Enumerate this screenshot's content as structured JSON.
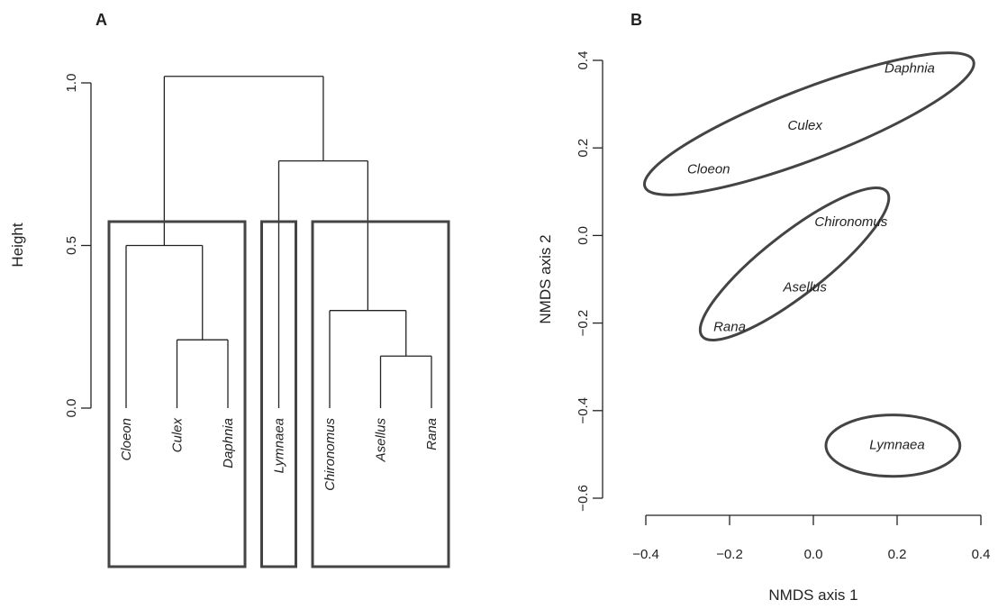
{
  "chart_data": [
    {
      "type": "dendrogram",
      "panel_label": "A",
      "ylabel": "Height",
      "ylim": [
        0,
        1
      ],
      "yticks": [
        0.0,
        0.5,
        1.0
      ],
      "ytick_labels": [
        "0.0",
        "0.5",
        "1.0"
      ],
      "leaves": [
        "Cloeon",
        "Culex",
        "Daphnia",
        "Lymnaea",
        "Chironomus",
        "Asellus",
        "Rana"
      ],
      "merges": [
        {
          "left": "Asellus",
          "right": "Rana",
          "height": 0.16
        },
        {
          "left": "Culex",
          "right": "Daphnia",
          "height": 0.21
        },
        {
          "left": "Chironomus",
          "right": "Asellus+Rana",
          "height": 0.3
        },
        {
          "left": "Cloeon",
          "right": "Culex+Daphnia",
          "height": 0.5
        },
        {
          "left": "Lymnaea",
          "right": "Chironomus+Asellus+Rana",
          "height": 0.76
        },
        {
          "left": "Cloeon+Culex+Daphnia",
          "right": "Lymnaea+Chironomus+Asellus+Rana",
          "height": 1.02
        }
      ],
      "groups": [
        [
          "Cloeon",
          "Culex",
          "Daphnia"
        ],
        [
          "Lymnaea"
        ],
        [
          "Chironomus",
          "Asellus",
          "Rana"
        ]
      ]
    },
    {
      "type": "scatter",
      "panel_label": "B",
      "xlabel": "NMDS axis 1",
      "ylabel": "NMDS axis 2",
      "xlim": [
        -0.4,
        0.4
      ],
      "ylim": [
        -0.6,
        0.4
      ],
      "xticks": [
        -0.4,
        -0.2,
        0.0,
        0.2,
        0.4
      ],
      "xtick_labels": [
        "−0.4",
        "−0.2",
        "0.0",
        "0.2",
        "0.4"
      ],
      "yticks": [
        -0.6,
        -0.4,
        -0.2,
        0.0,
        0.2,
        0.4
      ],
      "ytick_labels": [
        "−0.6",
        "−0.4",
        "−0.2",
        "0.0",
        "0.2",
        "0.4"
      ],
      "points": [
        {
          "label": "Daphnia",
          "x": 0.23,
          "y": 0.38
        },
        {
          "label": "Culex",
          "x": -0.02,
          "y": 0.25
        },
        {
          "label": "Cloeon",
          "x": -0.25,
          "y": 0.15
        },
        {
          "label": "Chironomus",
          "x": 0.09,
          "y": 0.03
        },
        {
          "label": "Asellus",
          "x": -0.02,
          "y": -0.12
        },
        {
          "label": "Rana",
          "x": -0.2,
          "y": -0.21
        },
        {
          "label": "Lymnaea",
          "x": 0.2,
          "y": -0.48
        }
      ],
      "ellipses": [
        {
          "members": [
            "Cloeon",
            "Culex",
            "Daphnia"
          ],
          "cx": -0.01,
          "cy": 0.255,
          "rx": 0.42,
          "ry": 0.08,
          "angle_deg": -21
        },
        {
          "members": [
            "Chironomus",
            "Asellus",
            "Rana"
          ],
          "cx": -0.045,
          "cy": -0.065,
          "rx": 0.28,
          "ry": 0.07,
          "angle_deg": -38
        },
        {
          "members": [
            "Lymnaea"
          ],
          "cx": 0.19,
          "cy": -0.48,
          "rx": 0.16,
          "ry": 0.07,
          "angle_deg": 0
        }
      ]
    }
  ]
}
